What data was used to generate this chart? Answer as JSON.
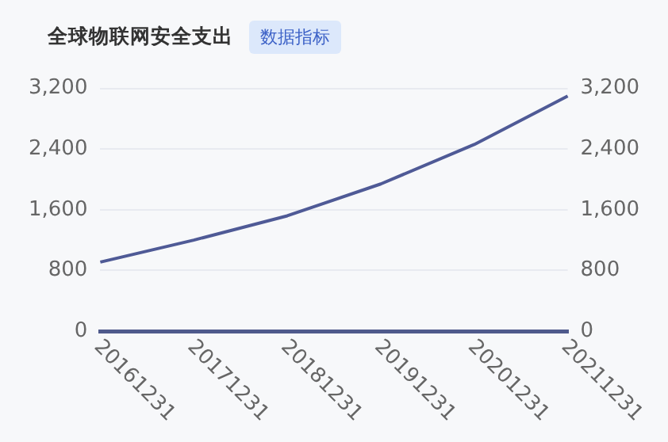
{
  "chart_data": {
    "type": "line",
    "title": "全球物联网安全支出",
    "subtitle": "数据指标",
    "categories": [
      "20161231",
      "20171231",
      "20181231",
      "20191231",
      "20201231",
      "20211231"
    ],
    "series": [
      {
        "color": "#4f5a96",
        "values": [
          910,
          1200,
          1520,
          1940,
          2460,
          3100
        ]
      }
    ],
    "ylim": [
      0,
      3200
    ],
    "yticks": [
      0,
      800,
      {
        "value": 1600,
        "label": "1,600"
      },
      {
        "value": 2400,
        "label": "2,400"
      },
      {
        "value": 3200,
        "label": "3,200"
      }
    ],
    "y2lim": [
      0,
      3200
    ],
    "y2ticks": [
      0,
      800,
      {
        "value": 1600,
        "label": "1,600"
      },
      {
        "value": 2400,
        "label": "2,400"
      },
      {
        "value": 3200,
        "label": "3,200"
      }
    ],
    "grid": "y",
    "legend": false,
    "marker": "none",
    "line_style": "solid"
  }
}
